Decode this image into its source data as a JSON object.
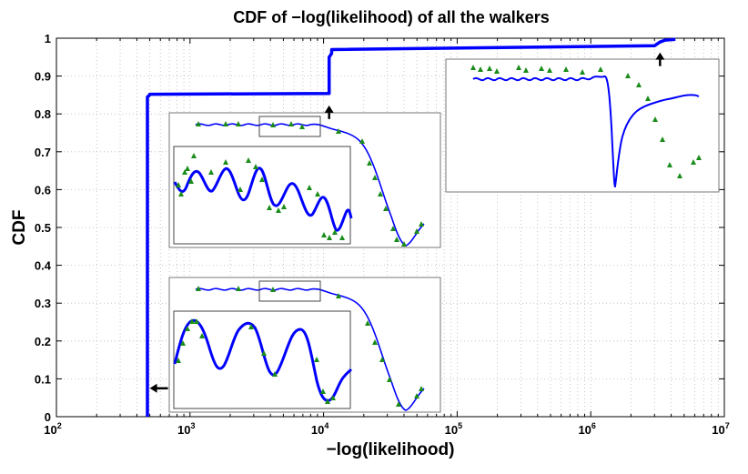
{
  "chart_data": {
    "type": "line",
    "title": "CDF of −log(likelihood) of all the walkers",
    "xlabel": "−log(likelihood)",
    "ylabel": "CDF",
    "xscale": "log",
    "xlim": [
      100,
      10000000
    ],
    "ylim": [
      0,
      1
    ],
    "grid": true,
    "x_tick_base": "10",
    "x_tick_exponents": [
      "2",
      "3",
      "4",
      "5",
      "6",
      "7"
    ],
    "y_ticks": [
      "0",
      "0.1",
      "0.2",
      "0.3",
      "0.4",
      "0.5",
      "0.6",
      "0.7",
      "0.8",
      "0.9",
      "1"
    ],
    "line_color": "#0000ff",
    "marker_color": "#1a8c1a",
    "series": [
      {
        "name": "CDF",
        "x": [
          480,
          480,
          480,
          500,
          500,
          11000,
          11000,
          11500,
          11500,
          3000000,
          3300000,
          3600000,
          4300000
        ],
        "y": [
          0,
          0.84,
          0.845,
          0.85,
          0.852,
          0.854,
          0.95,
          0.96,
          0.97,
          0.98,
          0.99,
          0.995,
          0.997
        ]
      }
    ],
    "annotations": [
      {
        "type": "arrow",
        "direction": "left",
        "x": 500,
        "y": 0.075
      },
      {
        "type": "arrow",
        "direction": "up",
        "x": 11000,
        "y": 0.82
      },
      {
        "type": "arrow",
        "direction": "up",
        "x": 3300000,
        "y": 0.96
      }
    ],
    "insets": [
      {
        "name": "inset-top-right",
        "anchor": "right of 10^6, near CDF 1.0"
      },
      {
        "name": "inset-middle",
        "anchor": "above 10^4 jump"
      },
      {
        "name": "inset-bottom",
        "anchor": "near 5x10^2 rise"
      }
    ]
  }
}
